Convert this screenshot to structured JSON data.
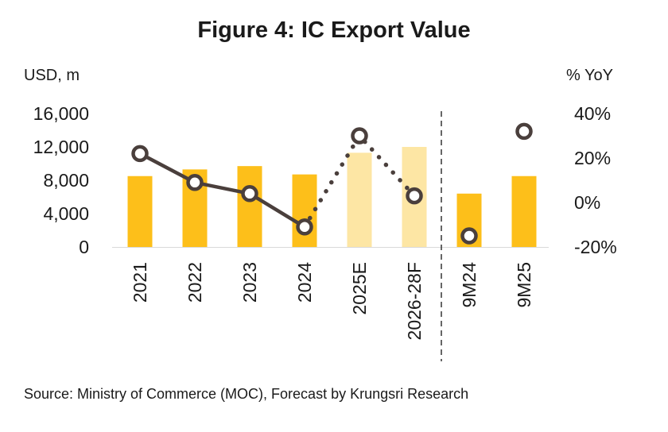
{
  "chart_data": {
    "type": "bar",
    "title": "Figure 4: IC Export Value",
    "ylabel_left": "USD, m",
    "ylabel_right": "% YoY",
    "categories": [
      "2021",
      "2022",
      "2023",
      "2024",
      "2025E",
      "2026-28F",
      "9M24",
      "9M25"
    ],
    "left_axis": {
      "ylim": [
        0,
        16000
      ],
      "ticks": [
        0,
        4000,
        8000,
        12000,
        16000
      ],
      "tick_labels": [
        "0",
        "4,000",
        "8,000",
        "12,000",
        "16,000"
      ]
    },
    "right_axis": {
      "ylim": [
        -20,
        40
      ],
      "ticks": [
        -20,
        0,
        20,
        40
      ],
      "tick_labels": [
        "-20%",
        "0%",
        "20%",
        "40%"
      ]
    },
    "series": [
      {
        "name": "Export value (USD, m)",
        "kind": "bar",
        "values": [
          8500,
          9300,
          9700,
          8700,
          11300,
          12000,
          6400,
          8500
        ],
        "estimate": [
          false,
          false,
          false,
          false,
          true,
          true,
          false,
          false
        ]
      },
      {
        "name": "% YoY",
        "kind": "line-marker",
        "values": [
          22,
          9,
          4,
          -11,
          30,
          3,
          -15,
          32
        ],
        "segments": [
          {
            "from": 0,
            "to": 3,
            "style": "solid"
          },
          {
            "from": 3,
            "to": 5,
            "style": "dotted"
          }
        ]
      }
    ],
    "divider_after_index": 5,
    "grid": false,
    "legend": "none"
  },
  "colors": {
    "bar_actual": "#FDBF1A",
    "bar_estimate": "#FDE6A4",
    "line": "#4A3F3C",
    "marker_fill": "#ffffff",
    "text": "#1a1a1a"
  },
  "source": "Source: Ministry of Commerce (MOC), Forecast by Krungsri Research"
}
